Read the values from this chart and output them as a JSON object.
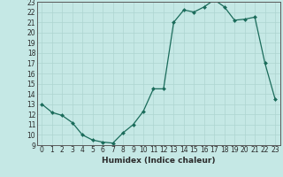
{
  "x": [
    0,
    1,
    2,
    3,
    4,
    5,
    6,
    7,
    8,
    9,
    10,
    11,
    12,
    13,
    14,
    15,
    16,
    17,
    18,
    19,
    20,
    21,
    22,
    23
  ],
  "y": [
    13.0,
    12.2,
    11.9,
    11.2,
    10.0,
    9.5,
    9.3,
    9.2,
    10.2,
    11.0,
    12.3,
    14.5,
    14.5,
    21.0,
    22.2,
    22.0,
    22.5,
    23.2,
    22.5,
    21.2,
    21.3,
    21.5,
    17.0,
    13.5
  ],
  "xlabel": "Humidex (Indice chaleur)",
  "ylim": [
    9,
    23
  ],
  "xlim": [
    -0.5,
    23.5
  ],
  "yticks": [
    9,
    10,
    11,
    12,
    13,
    14,
    15,
    16,
    17,
    18,
    19,
    20,
    21,
    22,
    23
  ],
  "xticks": [
    0,
    1,
    2,
    3,
    4,
    5,
    6,
    7,
    8,
    9,
    10,
    11,
    12,
    13,
    14,
    15,
    16,
    17,
    18,
    19,
    20,
    21,
    22,
    23
  ],
  "line_color": "#1a6b5a",
  "marker_color": "#1a6b5a",
  "bg_color": "#c5e8e5",
  "grid_color": "#aed4d0",
  "tick_fontsize": 5.5,
  "xlabel_fontsize": 6.5
}
